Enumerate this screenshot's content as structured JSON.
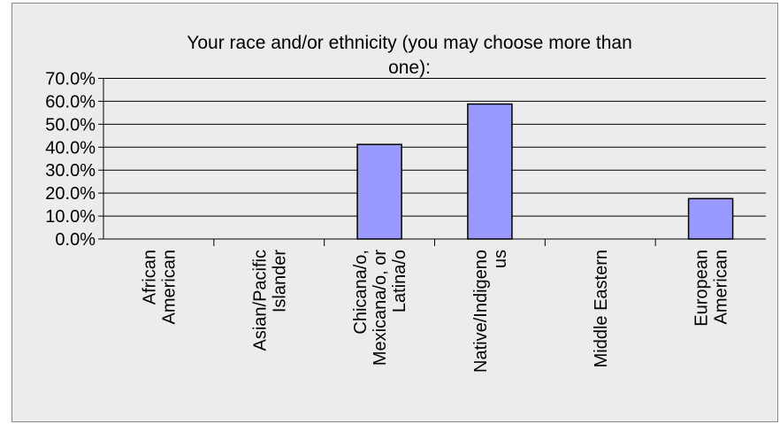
{
  "chart_data": {
    "type": "bar",
    "title_lines": [
      "Your race and/or ethnicity (you may choose more than",
      "one):"
    ],
    "categories": [
      [
        "African",
        "American"
      ],
      [
        "Asian/Pacific",
        "Islander"
      ],
      [
        "Chicana/o,",
        "Mexicana/o, or",
        "Latina/o"
      ],
      [
        "Native/Indigeno",
        "us"
      ],
      [
        "Middle Eastern"
      ],
      [
        "European",
        "American"
      ]
    ],
    "values": [
      0,
      0,
      41.2,
      58.8,
      0,
      17.6
    ],
    "yticks": [
      "0.0%",
      "10.0%",
      "20.0%",
      "30.0%",
      "40.0%",
      "50.0%",
      "60.0%",
      "70.0%"
    ],
    "ylim": [
      0,
      70
    ],
    "grid": true,
    "legend": "none",
    "colors": {
      "bar": "#9999ff",
      "bar_border": "#000000",
      "background": "#ececec",
      "grid": "#000000"
    }
  }
}
